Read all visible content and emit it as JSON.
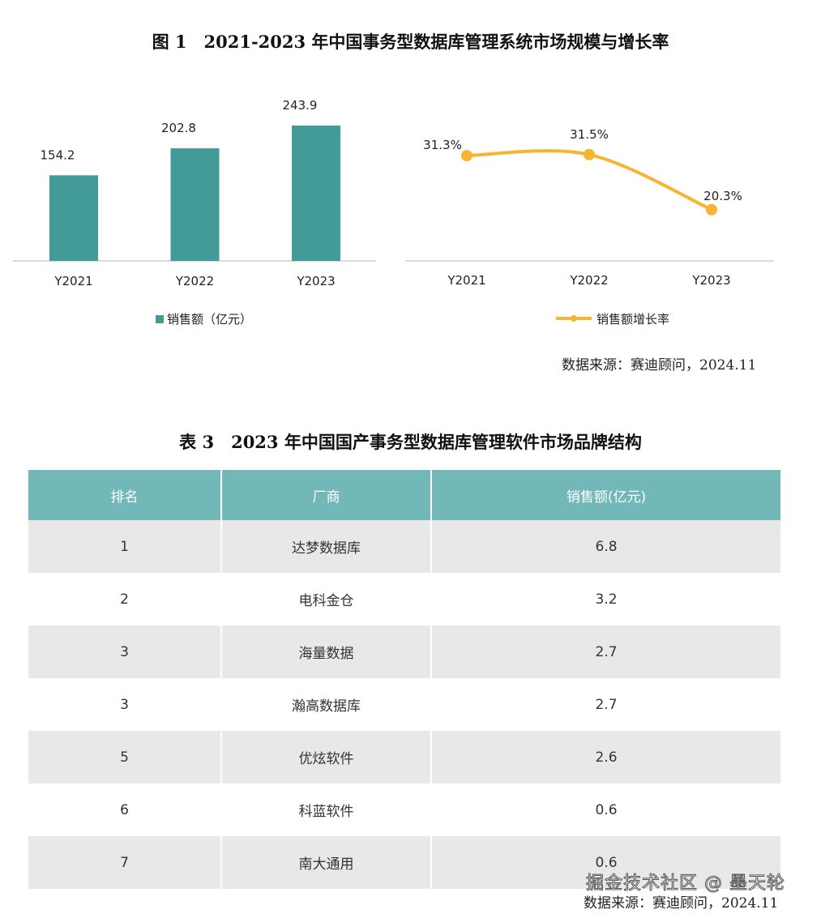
{
  "figure_title": "图 1　2021-2023 年中国事务型数据库管理系统市场规模与增长率",
  "source1": "数据来源：赛迪顾问，2024.11",
  "chart_data": [
    {
      "type": "bar",
      "categories": [
        "Y2021",
        "Y2022",
        "Y2023"
      ],
      "values": [
        154.2,
        202.8,
        243.9
      ],
      "labels": [
        "154.2",
        "202.8",
        "243.9"
      ],
      "legend": "销售额（亿元）",
      "color": "#429a99",
      "legend_position": "bottom",
      "grid": false
    },
    {
      "type": "line",
      "categories": [
        "Y2021",
        "Y2022",
        "Y2023"
      ],
      "values": [
        31.3,
        31.5,
        20.3
      ],
      "labels": [
        "31.3%",
        "31.5%",
        "20.3%"
      ],
      "legend": "销售额增长率",
      "color": "#f7b430",
      "legend_position": "bottom",
      "grid": false
    }
  ],
  "table": {
    "title": "表 3　2023 年中国国产事务型数据库管理软件市场品牌结构",
    "headers": [
      "排名",
      "厂商",
      "销售额(亿元)"
    ],
    "rows": [
      [
        "1",
        "达梦数据库",
        "6.8"
      ],
      [
        "2",
        "电科金仓",
        "3.2"
      ],
      [
        "3",
        "海量数据",
        "2.7"
      ],
      [
        "3",
        "瀚高数据库",
        "2.7"
      ],
      [
        "5",
        "优炫软件",
        "2.6"
      ],
      [
        "6",
        "科蓝软件",
        "0.6"
      ],
      [
        "7",
        "南大通用",
        "0.6"
      ]
    ],
    "header_color": "#72b8b9"
  },
  "source2": "数据来源：赛迪顾问，2024.11",
  "watermark": "掘金技术社区 @ 墨天轮"
}
